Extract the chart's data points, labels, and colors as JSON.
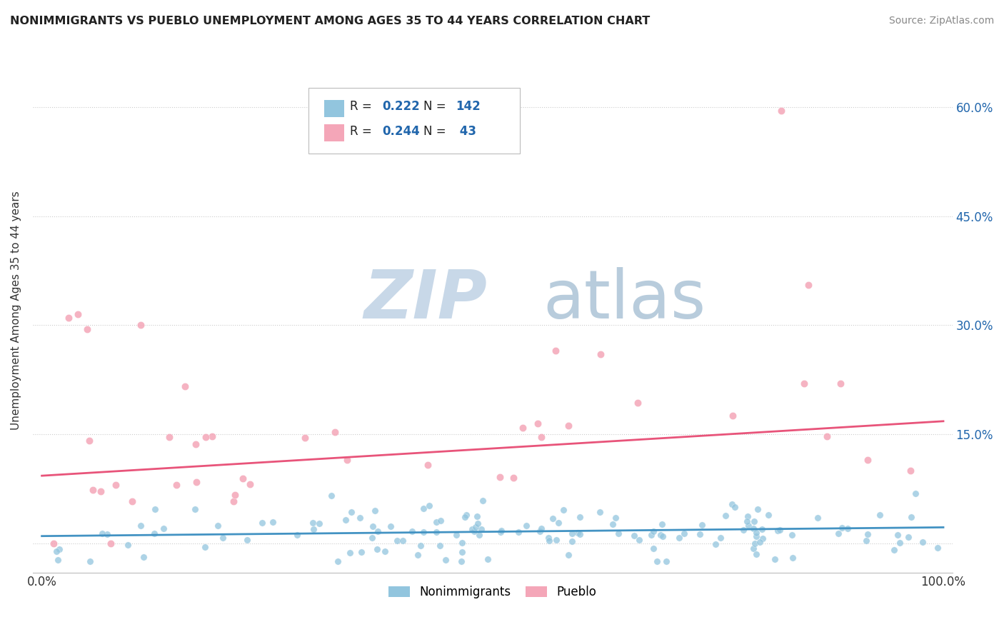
{
  "title": "NONIMMIGRANTS VS PUEBLO UNEMPLOYMENT AMONG AGES 35 TO 44 YEARS CORRELATION CHART",
  "source": "Source: ZipAtlas.com",
  "ylabel": "Unemployment Among Ages 35 to 44 years",
  "legend_label1": "Nonimmigrants",
  "legend_label2": "Pueblo",
  "r1": 0.222,
  "n1": 142,
  "r2": 0.244,
  "n2": 43,
  "ytick_values": [
    0.0,
    0.15,
    0.3,
    0.45,
    0.6
  ],
  "ytick_labels": [
    "",
    "15.0%",
    "30.0%",
    "45.0%",
    "60.0%"
  ],
  "xlim": [
    0.0,
    1.0
  ],
  "ylim": [
    -0.04,
    0.68
  ],
  "color_blue": "#92c5de",
  "color_blue_line": "#4393c3",
  "color_pink": "#f4a6b8",
  "color_pink_line": "#e8547a",
  "color_text_blue": "#2166ac",
  "watermark_color": "#d6e4f0",
  "blue_intercept": 0.01,
  "blue_slope": 0.012,
  "pink_intercept": 0.093,
  "pink_slope": 0.075
}
